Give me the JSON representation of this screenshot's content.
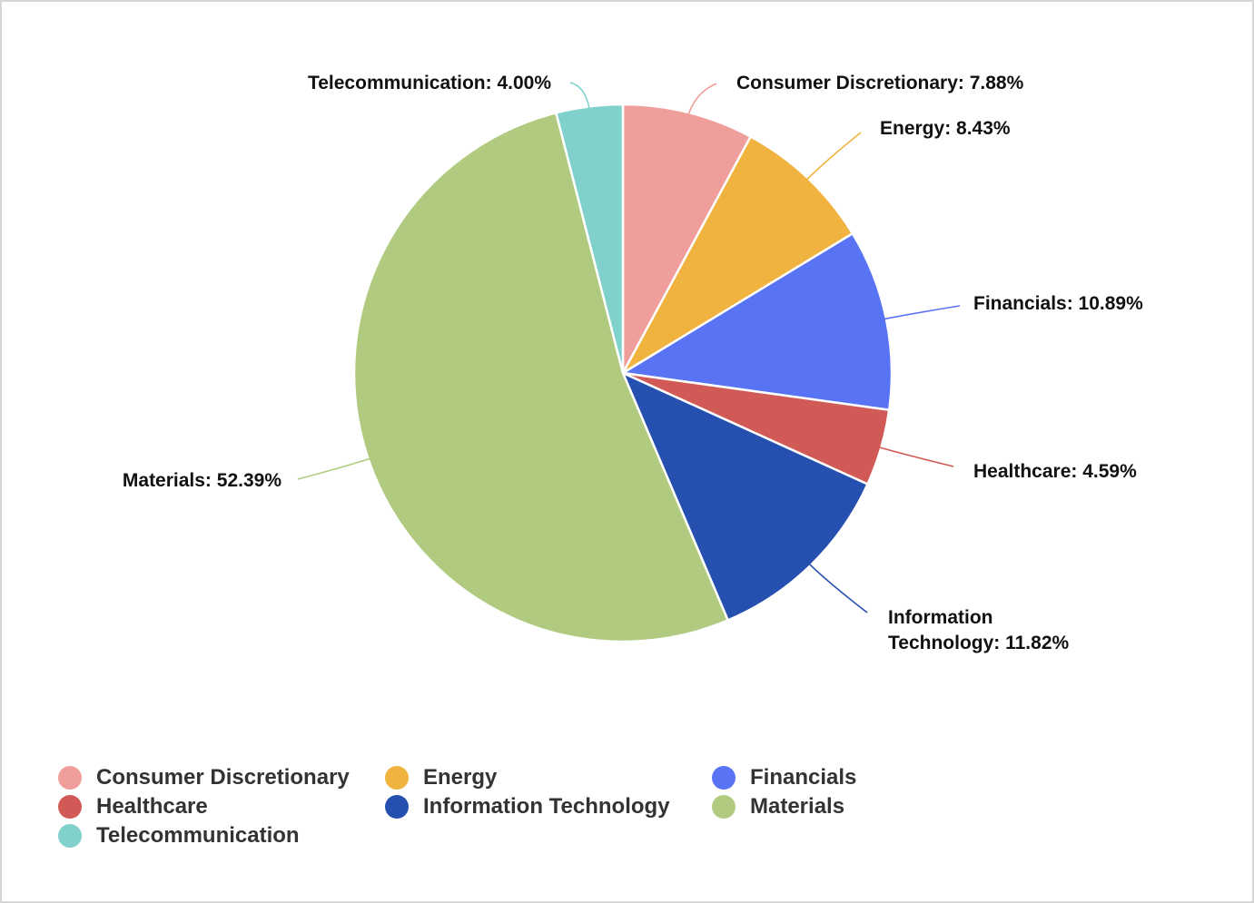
{
  "chart_data": {
    "type": "pie",
    "title": "",
    "slices": [
      {
        "name": "Consumer Discretionary",
        "value": 7.88,
        "label": "Consumer Discretionary: 7.88%",
        "color": "#EF9E9B"
      },
      {
        "name": "Energy",
        "value": 8.43,
        "label": "Energy: 8.43%",
        "color": "#F1B33F"
      },
      {
        "name": "Financials",
        "value": 10.89,
        "label": "Financials: 10.89%",
        "color": "#5873F3"
      },
      {
        "name": "Healthcare",
        "value": 4.59,
        "label": "Healthcare: 4.59%",
        "color": "#D15A56"
      },
      {
        "name": "Information Technology",
        "value": 11.82,
        "label_lines": [
          "Information",
          "Technology: 11.82%"
        ],
        "color": "#2650B0"
      },
      {
        "name": "Materials",
        "value": 52.39,
        "label": "Materials: 52.39%",
        "color": "#B0CB7F"
      },
      {
        "name": "Telecommunication",
        "value": 4.0,
        "label": "Telecommunication: 4.00%",
        "color": "#80D0CB"
      }
    ],
    "start_angle_deg": 0,
    "direction": "clockwise",
    "legend": {
      "position": "bottom-left",
      "items": [
        {
          "label": "Consumer Discretionary",
          "color": "#EF9E9B"
        },
        {
          "label": "Energy",
          "color": "#F1B33F"
        },
        {
          "label": "Financials",
          "color": "#5873F3"
        },
        {
          "label": "Healthcare",
          "color": "#D15A56"
        },
        {
          "label": "Information Technology",
          "color": "#2650B0"
        },
        {
          "label": "Materials",
          "color": "#B0CB7F"
        },
        {
          "label": "Telecommunication",
          "color": "#80D0CB"
        }
      ]
    }
  }
}
